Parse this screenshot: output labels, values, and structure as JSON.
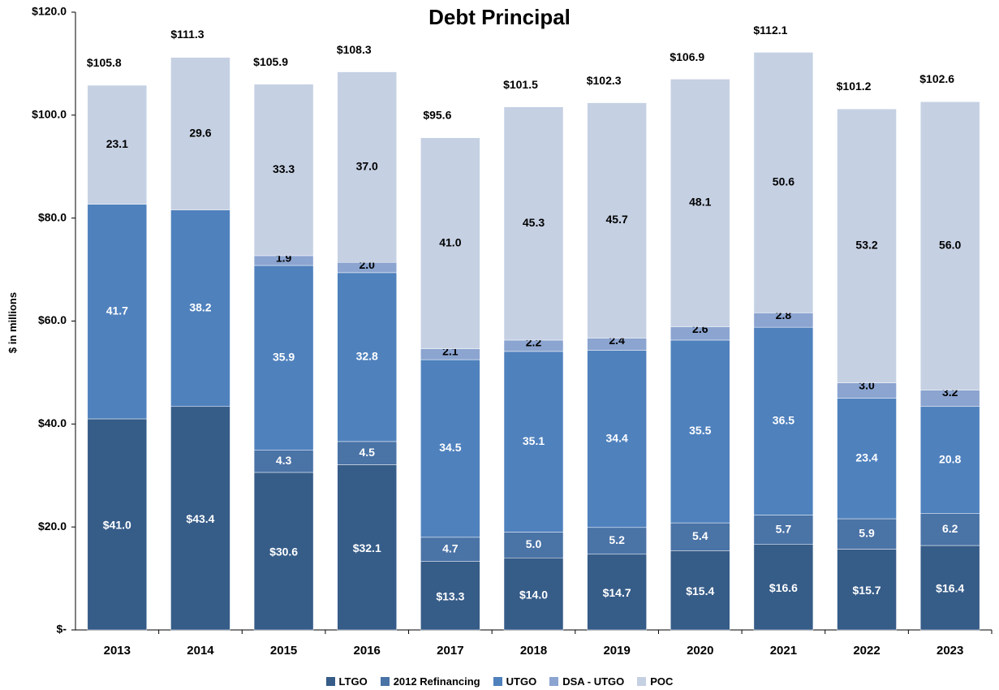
{
  "chart_data": {
    "type": "bar",
    "stacked": true,
    "title": "Debt Principal",
    "xlabel": "",
    "ylabel": "$ in millions",
    "ylim": [
      0,
      120
    ],
    "y_ticks": [
      "$-",
      "$20.0",
      "$40.0",
      "$60.0",
      "$80.0",
      "$100.0",
      "$120.0"
    ],
    "y_tick_values": [
      0,
      20,
      40,
      60,
      80,
      100,
      120
    ],
    "grid": false,
    "legend_position": "bottom",
    "categories": [
      "2013",
      "2014",
      "2015",
      "2016",
      "2017",
      "2018",
      "2019",
      "2020",
      "2021",
      "2022",
      "2023"
    ],
    "series": [
      {
        "name": "LTGO",
        "color": "#365c88",
        "values": [
          41.0,
          43.4,
          30.6,
          32.1,
          13.3,
          14.0,
          14.7,
          15.4,
          16.6,
          15.7,
          16.4
        ],
        "labels": [
          "$41.0",
          "$43.4",
          "$30.6",
          "$32.1",
          "$13.3",
          "$14.0",
          "$14.7",
          "$15.4",
          "$16.6",
          "$15.7",
          "$16.4"
        ]
      },
      {
        "name": "2012 Refinancing",
        "color": "#4a73a6",
        "values": [
          0,
          0,
          4.3,
          4.5,
          4.7,
          5.0,
          5.2,
          5.4,
          5.7,
          5.9,
          6.2
        ],
        "labels": [
          "",
          "",
          "4.3",
          "4.5",
          "4.7",
          "5.0",
          "5.2",
          "5.4",
          "5.7",
          "5.9",
          "6.2"
        ]
      },
      {
        "name": "UTGO",
        "color": "#4f81bd",
        "values": [
          41.7,
          38.2,
          35.9,
          32.8,
          34.5,
          35.1,
          34.4,
          35.5,
          36.5,
          23.4,
          20.8
        ],
        "labels": [
          "41.7",
          "38.2",
          "35.9",
          "32.8",
          "34.5",
          "35.1",
          "34.4",
          "35.5",
          "36.5",
          "23.4",
          "20.8"
        ]
      },
      {
        "name": "DSA - UTGO",
        "color": "#8ba4d0",
        "values": [
          0,
          0,
          1.9,
          2.0,
          2.1,
          2.2,
          2.4,
          2.6,
          2.8,
          3.0,
          3.2
        ],
        "labels": [
          "",
          "",
          "1.9",
          "2.0",
          "2.1",
          "2.2",
          "2.4",
          "2.6",
          "2.8",
          "3.0",
          "3.2"
        ]
      },
      {
        "name": "POC",
        "color": "#c5d0e3",
        "values": [
          23.1,
          29.6,
          33.3,
          37.0,
          41.0,
          45.3,
          45.7,
          48.1,
          50.6,
          53.2,
          56.0
        ],
        "labels": [
          "23.1",
          "29.6",
          "33.3",
          "37.0",
          "41.0",
          "45.3",
          "45.7",
          "48.1",
          "50.6",
          "53.2",
          "56.0"
        ]
      }
    ],
    "totals": [
      105.8,
      111.3,
      105.9,
      108.3,
      95.6,
      101.5,
      102.3,
      106.9,
      112.1,
      101.2,
      102.6
    ],
    "total_labels": [
      "$105.8",
      "$111.3",
      "$105.9",
      "$108.3",
      "$95.6",
      "$101.5",
      "$102.3",
      "$106.9",
      "$112.1",
      "$101.2",
      "$102.6"
    ]
  }
}
